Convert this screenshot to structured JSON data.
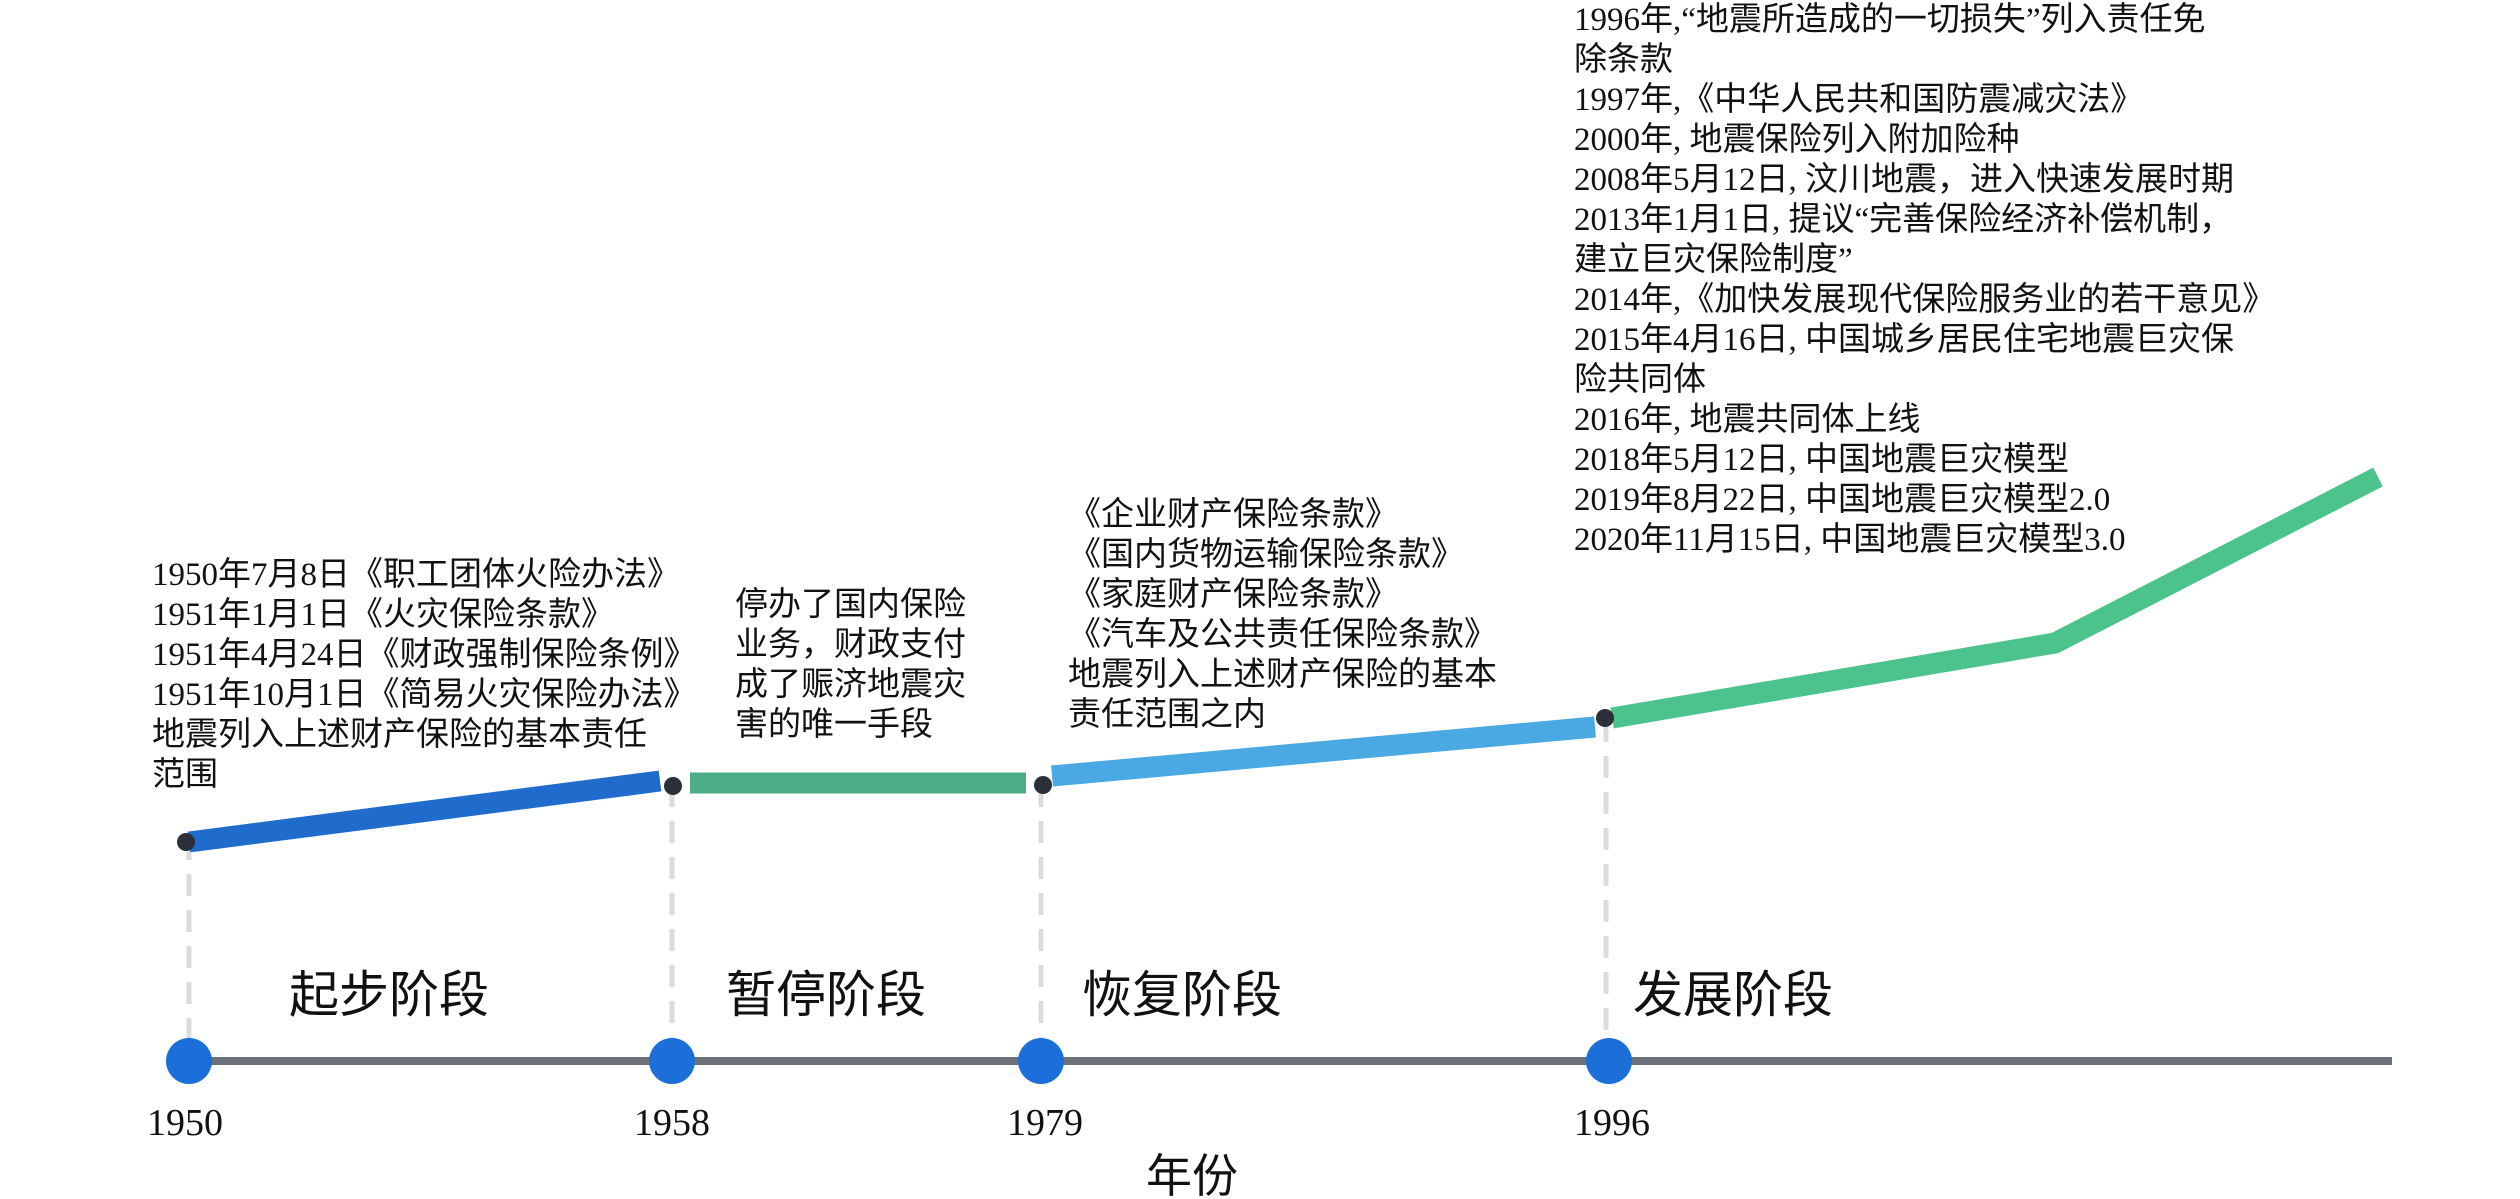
{
  "axis": {
    "title": "年份",
    "color": "#6b7079",
    "marker_color": "#1c6fd8"
  },
  "years": [
    "1950",
    "1958",
    "1979",
    "1996"
  ],
  "stages": [
    {
      "label": "起步阶段",
      "color": "#1f6ccc"
    },
    {
      "label": "暂停阶段",
      "color": "#4aad86"
    },
    {
      "label": "恢复阶段",
      "color": "#4aa9e2"
    },
    {
      "label": "发展阶段",
      "color": "#4cc38d"
    }
  ],
  "notes": {
    "startup": [
      "1950年7月8日《职工团体火险办法》",
      "1951年1月1日《火灾保险条款》",
      "1951年4月24日《财政强制保险条例》",
      "1951年10月1日《简易火灾保险办法》",
      "地震列入上述财产保险的基本责任",
      "范围"
    ],
    "pause": [
      "停办了国内保险",
      "业务，财政支付",
      "成了赈济地震灾",
      "害的唯一手段"
    ],
    "recovery": [
      "《企业财产保险条款》",
      "《国内货物运输保险条款》",
      "《家庭财产保险条款》",
      "《汽车及公共责任保险条款》",
      "地震列入上述财产保险的基本",
      "责任范围之内"
    ],
    "development": [
      "1996年,“地震所造成的一切损失”列入责任免",
      "除条款",
      "1997年,《中华人民共和国防震减灾法》",
      "2000年, 地震保险列入附加险种",
      "2008年5月12日, 汶川地震，进入快速发展时期",
      "2013年1月1日, 提议“完善保险经济补偿机制，",
      "建立巨灾保险制度”",
      "2014年,《加快发展现代保险服务业的若干意见》",
      "2015年4月16日, 中国城乡居民住宅地震巨灾保",
      "险共同体",
      "2016年, 地震共同体上线",
      "2018年5月12日, 中国地震巨灾模型",
      "2019年8月22日, 中国地震巨灾模型2.0",
      "2020年11月15日, 中国地震巨灾模型3.0"
    ]
  }
}
